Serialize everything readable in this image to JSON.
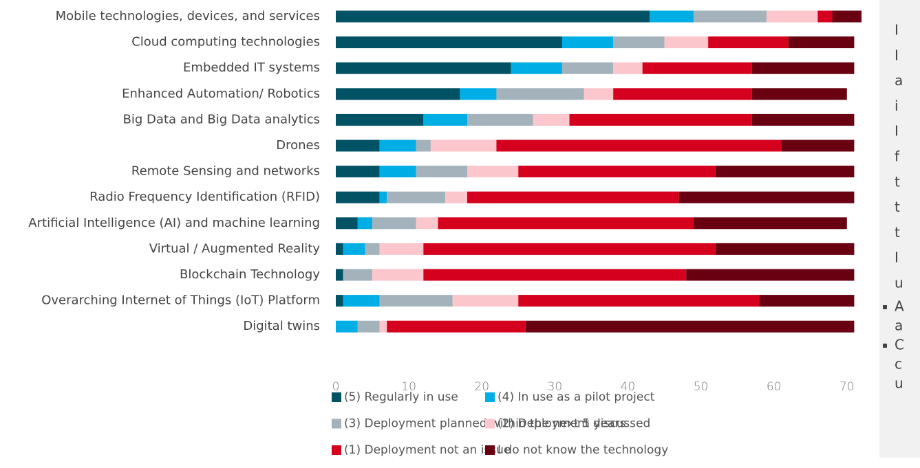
{
  "chart_data": {
    "type": "stacked_barh",
    "categories": [
      "Mobile technologies, devices, and services",
      "Cloud computing technologies",
      "Embedded IT systems",
      "Enhanced Automation/ Robotics",
      "Big Data and Big Data analytics",
      "Drones",
      "Remote Sensing and networks",
      "Radio Frequency Identification (RFID)",
      "Artificial Intelligence (AI) and machine learning",
      "Virtual / Augmented Reality",
      "Blockchain Technology",
      "Overarching Internet of Things (IoT) Platform",
      "Digital twins"
    ],
    "series": [
      {
        "name": "(5) Regularly in use",
        "color": "#005264",
        "values": [
          43,
          31,
          24,
          17,
          12,
          6,
          6,
          6,
          3,
          1,
          1,
          1,
          0
        ]
      },
      {
        "name": "(4) In use as a pilot project",
        "color": "#00aee6",
        "values": [
          6,
          7,
          7,
          5,
          6,
          5,
          5,
          1,
          2,
          3,
          0,
          5,
          3
        ]
      },
      {
        "name": "(3) Deployment planned within the next 5 years",
        "color": "#a4b2bb",
        "values": [
          10,
          7,
          7,
          12,
          9,
          2,
          7,
          8,
          6,
          2,
          4,
          10,
          3
        ]
      },
      {
        "name": "(2) Deployment discussed",
        "color": "#fcc6cd",
        "values": [
          7,
          6,
          4,
          4,
          5,
          9,
          7,
          3,
          3,
          6,
          7,
          9,
          1
        ]
      },
      {
        "name": "(1) Deployment not an issue",
        "color": "#d4001e",
        "values": [
          2,
          11,
          15,
          19,
          25,
          39,
          27,
          29,
          35,
          40,
          36,
          33,
          19
        ]
      },
      {
        "name": "I do not know the technology",
        "color": "#690012",
        "values": [
          4,
          9,
          14,
          13,
          14,
          10,
          19,
          24,
          21,
          19,
          23,
          13,
          45
        ]
      }
    ],
    "xlim": [
      0,
      72
    ],
    "xticks": [
      0,
      10,
      20,
      30,
      40,
      50,
      60,
      70
    ]
  },
  "side_panel": {
    "lines": [
      "I",
      "I",
      "a",
      "i",
      "I",
      "f",
      "t",
      "t",
      "t",
      "I",
      "u"
    ],
    "bullets": [
      [
        "A",
        "a"
      ],
      [
        "C",
        "c",
        "u"
      ]
    ]
  }
}
